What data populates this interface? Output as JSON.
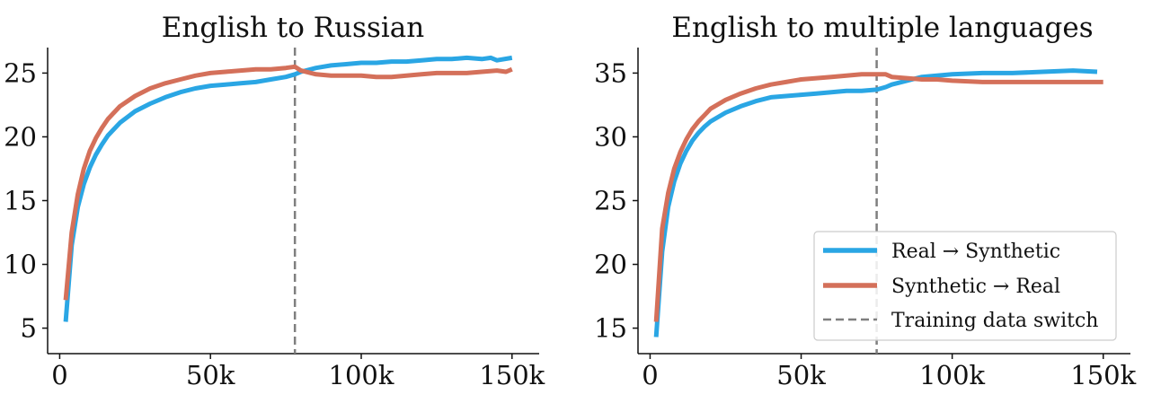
{
  "colors": {
    "real_to_synthetic": "#2aa6e4",
    "synthetic_to_real": "#d4705a",
    "switch_line": "#7f7f7f",
    "axis": "#111111"
  },
  "legend": [
    {
      "label": "Real → Synthetic",
      "series": "real_to_synthetic",
      "style": "solid"
    },
    {
      "label": "Synthetic → Real",
      "series": "synthetic_to_real",
      "style": "solid"
    },
    {
      "label": "Training data switch",
      "series": "switch",
      "style": "dashed"
    }
  ],
  "chart_data": [
    {
      "type": "line",
      "title": "English to Russian",
      "xlabel": "",
      "ylabel": "",
      "xlim": [
        -4000,
        159000
      ],
      "ylim": [
        3,
        27
      ],
      "xticks": [
        0,
        50000,
        100000,
        150000
      ],
      "xtick_labels": [
        "0",
        "50k",
        "100k",
        "150k"
      ],
      "yticks": [
        5,
        10,
        15,
        20,
        25
      ],
      "ytick_labels": [
        "5",
        "10",
        "15",
        "20",
        "25"
      ],
      "switch_x": 78000,
      "legend": false,
      "series": [
        {
          "name": "Real → Synthetic",
          "key": "real_to_synthetic",
          "x": [
            2000,
            4000,
            6000,
            8000,
            10000,
            12000,
            14000,
            16000,
            18000,
            20000,
            25000,
            30000,
            35000,
            40000,
            45000,
            50000,
            55000,
            60000,
            65000,
            70000,
            75000,
            78000,
            80000,
            85000,
            90000,
            95000,
            100000,
            105000,
            110000,
            115000,
            120000,
            125000,
            130000,
            135000,
            140000,
            143000,
            145000,
            150000
          ],
          "y": [
            5.5,
            11.5,
            14.5,
            16.3,
            17.6,
            18.6,
            19.4,
            20.1,
            20.6,
            21.1,
            22.0,
            22.6,
            23.1,
            23.5,
            23.8,
            24.0,
            24.1,
            24.2,
            24.3,
            24.5,
            24.7,
            24.9,
            25.1,
            25.4,
            25.6,
            25.7,
            25.8,
            25.8,
            25.9,
            25.9,
            26.0,
            26.1,
            26.1,
            26.2,
            26.1,
            26.2,
            26.0,
            26.2
          ]
        },
        {
          "name": "Synthetic → Real",
          "key": "synthetic_to_real",
          "x": [
            2000,
            4000,
            6000,
            8000,
            10000,
            12000,
            14000,
            16000,
            18000,
            20000,
            25000,
            30000,
            35000,
            40000,
            45000,
            50000,
            55000,
            60000,
            65000,
            70000,
            75000,
            78000,
            80000,
            85000,
            90000,
            95000,
            100000,
            105000,
            110000,
            115000,
            120000,
            125000,
            130000,
            135000,
            140000,
            145000,
            148000,
            150000
          ],
          "y": [
            7.2,
            12.5,
            15.5,
            17.5,
            18.9,
            19.9,
            20.7,
            21.4,
            21.9,
            22.4,
            23.2,
            23.8,
            24.2,
            24.5,
            24.8,
            25.0,
            25.1,
            25.2,
            25.3,
            25.3,
            25.4,
            25.5,
            25.2,
            24.9,
            24.8,
            24.8,
            24.8,
            24.7,
            24.7,
            24.8,
            24.9,
            25.0,
            25.0,
            25.0,
            25.1,
            25.2,
            25.1,
            25.3
          ]
        }
      ]
    },
    {
      "type": "line",
      "title": "English to multiple languages",
      "xlabel": "",
      "ylabel": "",
      "xlim": [
        -4000,
        159000
      ],
      "ylim": [
        13,
        37
      ],
      "xticks": [
        0,
        50000,
        100000,
        150000
      ],
      "xtick_labels": [
        "0",
        "50k",
        "100k",
        "150k"
      ],
      "yticks": [
        15,
        20,
        25,
        30,
        35
      ],
      "ytick_labels": [
        "15",
        "20",
        "25",
        "30",
        "35"
      ],
      "switch_x": 75000,
      "legend": true,
      "legend_position": "lower-right",
      "series": [
        {
          "name": "Real → Synthetic",
          "key": "real_to_synthetic",
          "x": [
            2000,
            4000,
            6000,
            8000,
            10000,
            12000,
            14000,
            16000,
            18000,
            20000,
            25000,
            30000,
            35000,
            40000,
            45000,
            50000,
            55000,
            60000,
            65000,
            70000,
            75000,
            78000,
            80000,
            85000,
            90000,
            95000,
            100000,
            110000,
            120000,
            130000,
            140000,
            148000
          ],
          "y": [
            14.3,
            21.0,
            24.5,
            26.5,
            27.9,
            28.9,
            29.7,
            30.3,
            30.8,
            31.2,
            31.9,
            32.4,
            32.8,
            33.1,
            33.2,
            33.3,
            33.4,
            33.5,
            33.6,
            33.6,
            33.7,
            33.9,
            34.1,
            34.4,
            34.7,
            34.8,
            34.9,
            35.0,
            35.0,
            35.1,
            35.2,
            35.1
          ]
        },
        {
          "name": "Synthetic → Real",
          "key": "synthetic_to_real",
          "x": [
            2000,
            4000,
            6000,
            8000,
            10000,
            12000,
            14000,
            16000,
            18000,
            20000,
            25000,
            30000,
            35000,
            40000,
            45000,
            50000,
            55000,
            60000,
            65000,
            70000,
            75000,
            78000,
            80000,
            85000,
            90000,
            95000,
            100000,
            110000,
            120000,
            130000,
            140000,
            150000
          ],
          "y": [
            15.5,
            22.8,
            25.6,
            27.5,
            28.8,
            29.8,
            30.6,
            31.2,
            31.7,
            32.2,
            32.9,
            33.4,
            33.8,
            34.1,
            34.3,
            34.5,
            34.6,
            34.7,
            34.8,
            34.9,
            34.9,
            34.9,
            34.7,
            34.6,
            34.5,
            34.5,
            34.4,
            34.3,
            34.3,
            34.3,
            34.3,
            34.3
          ]
        }
      ]
    }
  ]
}
